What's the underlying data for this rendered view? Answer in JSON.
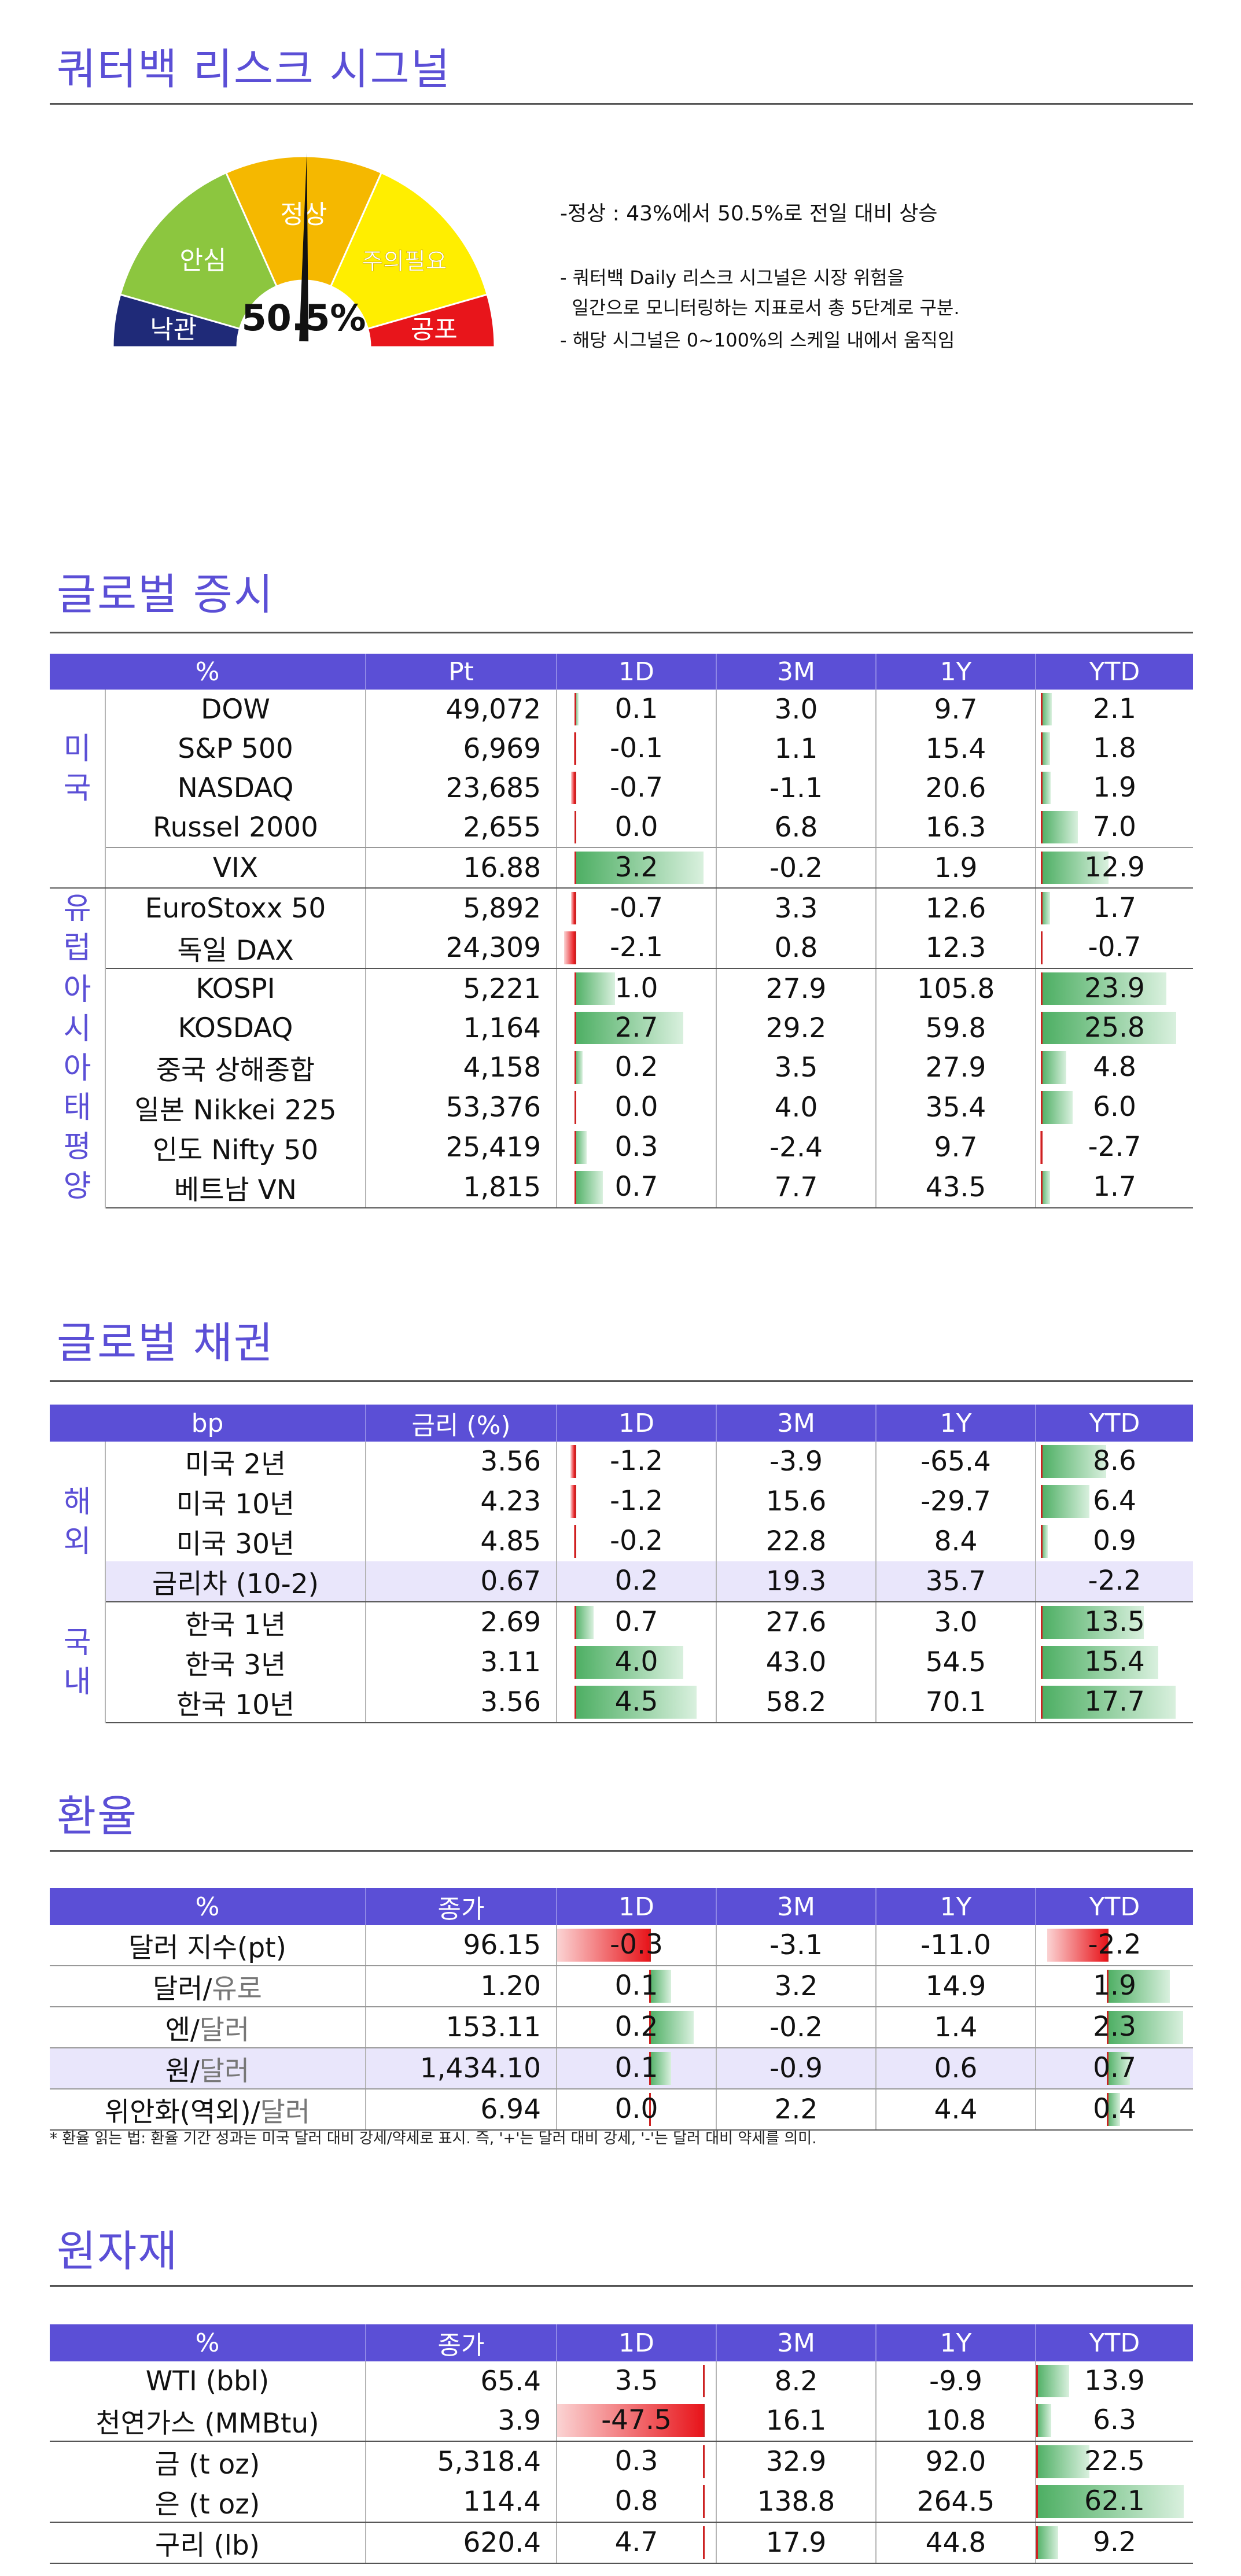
{
  "risk": {
    "title": "쿼터백 리스크 시그널",
    "value_text": "50.5%",
    "value": 50.5,
    "levels": [
      {
        "label": "낙관",
        "color": "#1f2a78"
      },
      {
        "label": "안심",
        "color": "#8cc63f"
      },
      {
        "label": "정상",
        "color": "#f5b800"
      },
      {
        "label": "주의필요",
        "color": "#ffee00"
      },
      {
        "label": "공포",
        "color": "#e8151b"
      }
    ],
    "headline": "-정상 : 43%에서 50.5%로 전일 대비 상승",
    "notes": [
      "- 쿼터백 Daily 리스크 시그널은 시장 위험을",
      "  일간으로 모니터링하는 지표로서 총 5단계로 구분.",
      "- 해당 시그널은 0~100%의 스케일 내에서 움직임"
    ]
  },
  "equity": {
    "title": "글로벌 증시",
    "headers": [
      "%",
      "Pt",
      "1D",
      "3M",
      "1Y",
      "YTD"
    ],
    "groups": [
      {
        "region": "미국",
        "rows": [
          {
            "name": "DOW",
            "pt": "49,072",
            "d1": 0.1,
            "d1_text": "0.1",
            "m3": "3.0",
            "y1": "9.7",
            "ytd": 2.1,
            "ytd_text": "2.1"
          },
          {
            "name": "S&P 500",
            "pt": "6,969",
            "d1": -0.1,
            "d1_text": "-0.1",
            "m3": "1.1",
            "y1": "15.4",
            "ytd": 1.8,
            "ytd_text": "1.8"
          },
          {
            "name": "NASDAQ",
            "pt": "23,685",
            "d1": -0.7,
            "d1_text": "-0.7",
            "m3": "-1.1",
            "y1": "20.6",
            "ytd": 1.9,
            "ytd_text": "1.9"
          },
          {
            "name": "Russel 2000",
            "pt": "2,655",
            "d1": 0.0,
            "d1_text": "0.0",
            "m3": "6.8",
            "y1": "16.3",
            "ytd": 7.0,
            "ytd_text": "7.0"
          }
        ]
      },
      {
        "region": "",
        "rows": [
          {
            "name": "VIX",
            "pt": "16.88",
            "d1": 3.2,
            "d1_text": "3.2",
            "m3": "-0.2",
            "y1": "1.9",
            "ytd": 12.9,
            "ytd_text": "12.9"
          }
        ]
      },
      {
        "region": "유럽",
        "rows": [
          {
            "name": "EuroStoxx 50",
            "pt": "5,892",
            "d1": -0.7,
            "d1_text": "-0.7",
            "m3": "3.3",
            "y1": "12.6",
            "ytd": 1.7,
            "ytd_text": "1.7"
          },
          {
            "name": "독일 DAX",
            "pt": "24,309",
            "d1": -2.1,
            "d1_text": "-2.1",
            "m3": "0.8",
            "y1": "12.3",
            "ytd": -0.7,
            "ytd_text": "-0.7"
          }
        ]
      },
      {
        "region": "아시아태평양",
        "rows": [
          {
            "name": "KOSPI",
            "pt": "5,221",
            "d1": 1.0,
            "d1_text": "1.0",
            "m3": "27.9",
            "y1": "105.8",
            "ytd": 23.9,
            "ytd_text": "23.9"
          },
          {
            "name": "KOSDAQ",
            "pt": "1,164",
            "d1": 2.7,
            "d1_text": "2.7",
            "m3": "29.2",
            "y1": "59.8",
            "ytd": 25.8,
            "ytd_text": "25.8"
          },
          {
            "name": "중국 상해종합",
            "pt": "4,158",
            "d1": 0.2,
            "d1_text": "0.2",
            "m3": "3.5",
            "y1": "27.9",
            "ytd": 4.8,
            "ytd_text": "4.8"
          },
          {
            "name": "일본 Nikkei 225",
            "pt": "53,376",
            "d1": 0.0,
            "d1_text": "0.0",
            "m3": "4.0",
            "y1": "35.4",
            "ytd": 6.0,
            "ytd_text": "6.0"
          },
          {
            "name": "인도 Nifty 50",
            "pt": "25,419",
            "d1": 0.3,
            "d1_text": "0.3",
            "m3": "-2.4",
            "y1": "9.7",
            "ytd": -2.7,
            "ytd_text": "-2.7"
          },
          {
            "name": "베트남 VN",
            "pt": "1,815",
            "d1": 0.7,
            "d1_text": "0.7",
            "m3": "7.7",
            "y1": "43.5",
            "ytd": 1.7,
            "ytd_text": "1.7"
          }
        ]
      }
    ]
  },
  "bonds": {
    "title": "글로벌 채권",
    "headers": [
      "bp",
      "금리 (%)",
      "1D",
      "3M",
      "1Y",
      "YTD"
    ],
    "groups": [
      {
        "region": "해외",
        "rows": [
          {
            "name": "미국 2년",
            "pt": "3.56",
            "d1": -1.2,
            "d1_text": "-1.2",
            "m3": "-3.9",
            "y1": "-65.4",
            "ytd": 8.6,
            "ytd_text": "8.6"
          },
          {
            "name": "미국 10년",
            "pt": "4.23",
            "d1": -1.2,
            "d1_text": "-1.2",
            "m3": "15.6",
            "y1": "-29.7",
            "ytd": 6.4,
            "ytd_text": "6.4"
          },
          {
            "name": "미국 30년",
            "pt": "4.85",
            "d1": -0.2,
            "d1_text": "-0.2",
            "m3": "22.8",
            "y1": "8.4",
            "ytd": 0.9,
            "ytd_text": "0.9"
          },
          {
            "name": "금리차 (10-2)",
            "pt": "0.67",
            "d1": 0.2,
            "d1_text": "0.2",
            "m3": "19.3",
            "y1": "35.7",
            "ytd": -2.2,
            "ytd_text": "-2.2",
            "highlight": true,
            "nobar": true
          }
        ]
      },
      {
        "region": "국내",
        "rows": [
          {
            "name": "한국 1년",
            "pt": "2.69",
            "d1": 0.7,
            "d1_text": "0.7",
            "m3": "27.6",
            "y1": "3.0",
            "ytd": 13.5,
            "ytd_text": "13.5"
          },
          {
            "name": "한국 3년",
            "pt": "3.11",
            "d1": 4.0,
            "d1_text": "4.0",
            "m3": "43.0",
            "y1": "54.5",
            "ytd": 15.4,
            "ytd_text": "15.4"
          },
          {
            "name": "한국 10년",
            "pt": "3.56",
            "d1": 4.5,
            "d1_text": "4.5",
            "m3": "58.2",
            "y1": "70.1",
            "ytd": 17.7,
            "ytd_text": "17.7"
          }
        ]
      }
    ]
  },
  "fx": {
    "title": "환율",
    "headers": [
      "%",
      "종가",
      "1D",
      "3M",
      "1Y",
      "YTD"
    ],
    "rows": [
      {
        "name_a": "달러 지수(pt)",
        "name_b": "",
        "pt": "96.15",
        "d1": -0.3,
        "d1_text": "-0.3",
        "m3": "-3.1",
        "y1": "-11.0",
        "ytd": -2.2,
        "ytd_text": "-2.2"
      },
      {
        "name_a": "달러/",
        "name_b": "유로",
        "grey_first": true,
        "pt": "1.20",
        "d1": 0.1,
        "d1_text": "0.1",
        "m3": "3.2",
        "y1": "14.9",
        "ytd": 1.9,
        "ytd_text": "1.9"
      },
      {
        "name_a": "엔/",
        "name_b": "달러",
        "grey_first": false,
        "pt": "153.11",
        "d1": 0.2,
        "d1_text": "0.2",
        "m3": "-0.2",
        "y1": "1.4",
        "ytd": 2.3,
        "ytd_text": "2.3"
      },
      {
        "name_a": "원/",
        "name_b": "달러",
        "grey_first": false,
        "pt": "1,434.10",
        "d1": 0.1,
        "d1_text": "0.1",
        "m3": "-0.9",
        "y1": "0.6",
        "ytd": 0.7,
        "ytd_text": "0.7",
        "highlight": true
      },
      {
        "name_a": "위안화(역외)/",
        "name_b": "달러",
        "grey_first": false,
        "pt": "6.94",
        "d1": 0.0,
        "d1_text": "0.0",
        "m3": "2.2",
        "y1": "4.4",
        "ytd": 0.4,
        "ytd_text": "0.4"
      }
    ],
    "footnote": "* 환율 읽는 법: 환율 기간 성과는 미국 달러 대비 강세/약세로 표시. 즉, '+'는 달러 대비 강세, '-'는 달러 대비 약세를 의미."
  },
  "commod": {
    "title": "원자재",
    "headers": [
      "%",
      "종가",
      "1D",
      "3M",
      "1Y",
      "YTD"
    ],
    "groups": [
      {
        "rows": [
          {
            "name": "WTI (bbl)",
            "pt": "65.4",
            "d1": 3.5,
            "d1_text": "3.5",
            "m3": "8.2",
            "y1": "-9.9",
            "ytd": 13.9,
            "ytd_text": "13.9"
          },
          {
            "name": "천연가스 (MMBtu)",
            "pt": "3.9",
            "d1": -47.5,
            "d1_text": "-47.5",
            "m3": "16.1",
            "y1": "10.8",
            "ytd": 6.3,
            "ytd_text": "6.3"
          }
        ]
      },
      {
        "rows": [
          {
            "name": "금 (t oz)",
            "pt": "5,318.4",
            "d1": 0.3,
            "d1_text": "0.3",
            "m3": "32.9",
            "y1": "92.0",
            "ytd": 22.5,
            "ytd_text": "22.5"
          },
          {
            "name": "은 (t oz)",
            "pt": "114.4",
            "d1": 0.8,
            "d1_text": "0.8",
            "m3": "138.8",
            "y1": "264.5",
            "ytd": 62.1,
            "ytd_text": "62.1"
          }
        ]
      },
      {
        "rows": [
          {
            "name": "구리 (lb)",
            "pt": "620.4",
            "d1": 4.7,
            "d1_text": "4.7",
            "m3": "17.9",
            "y1": "44.8",
            "ytd": 9.2,
            "ytd_text": "9.2"
          }
        ]
      }
    ]
  }
}
